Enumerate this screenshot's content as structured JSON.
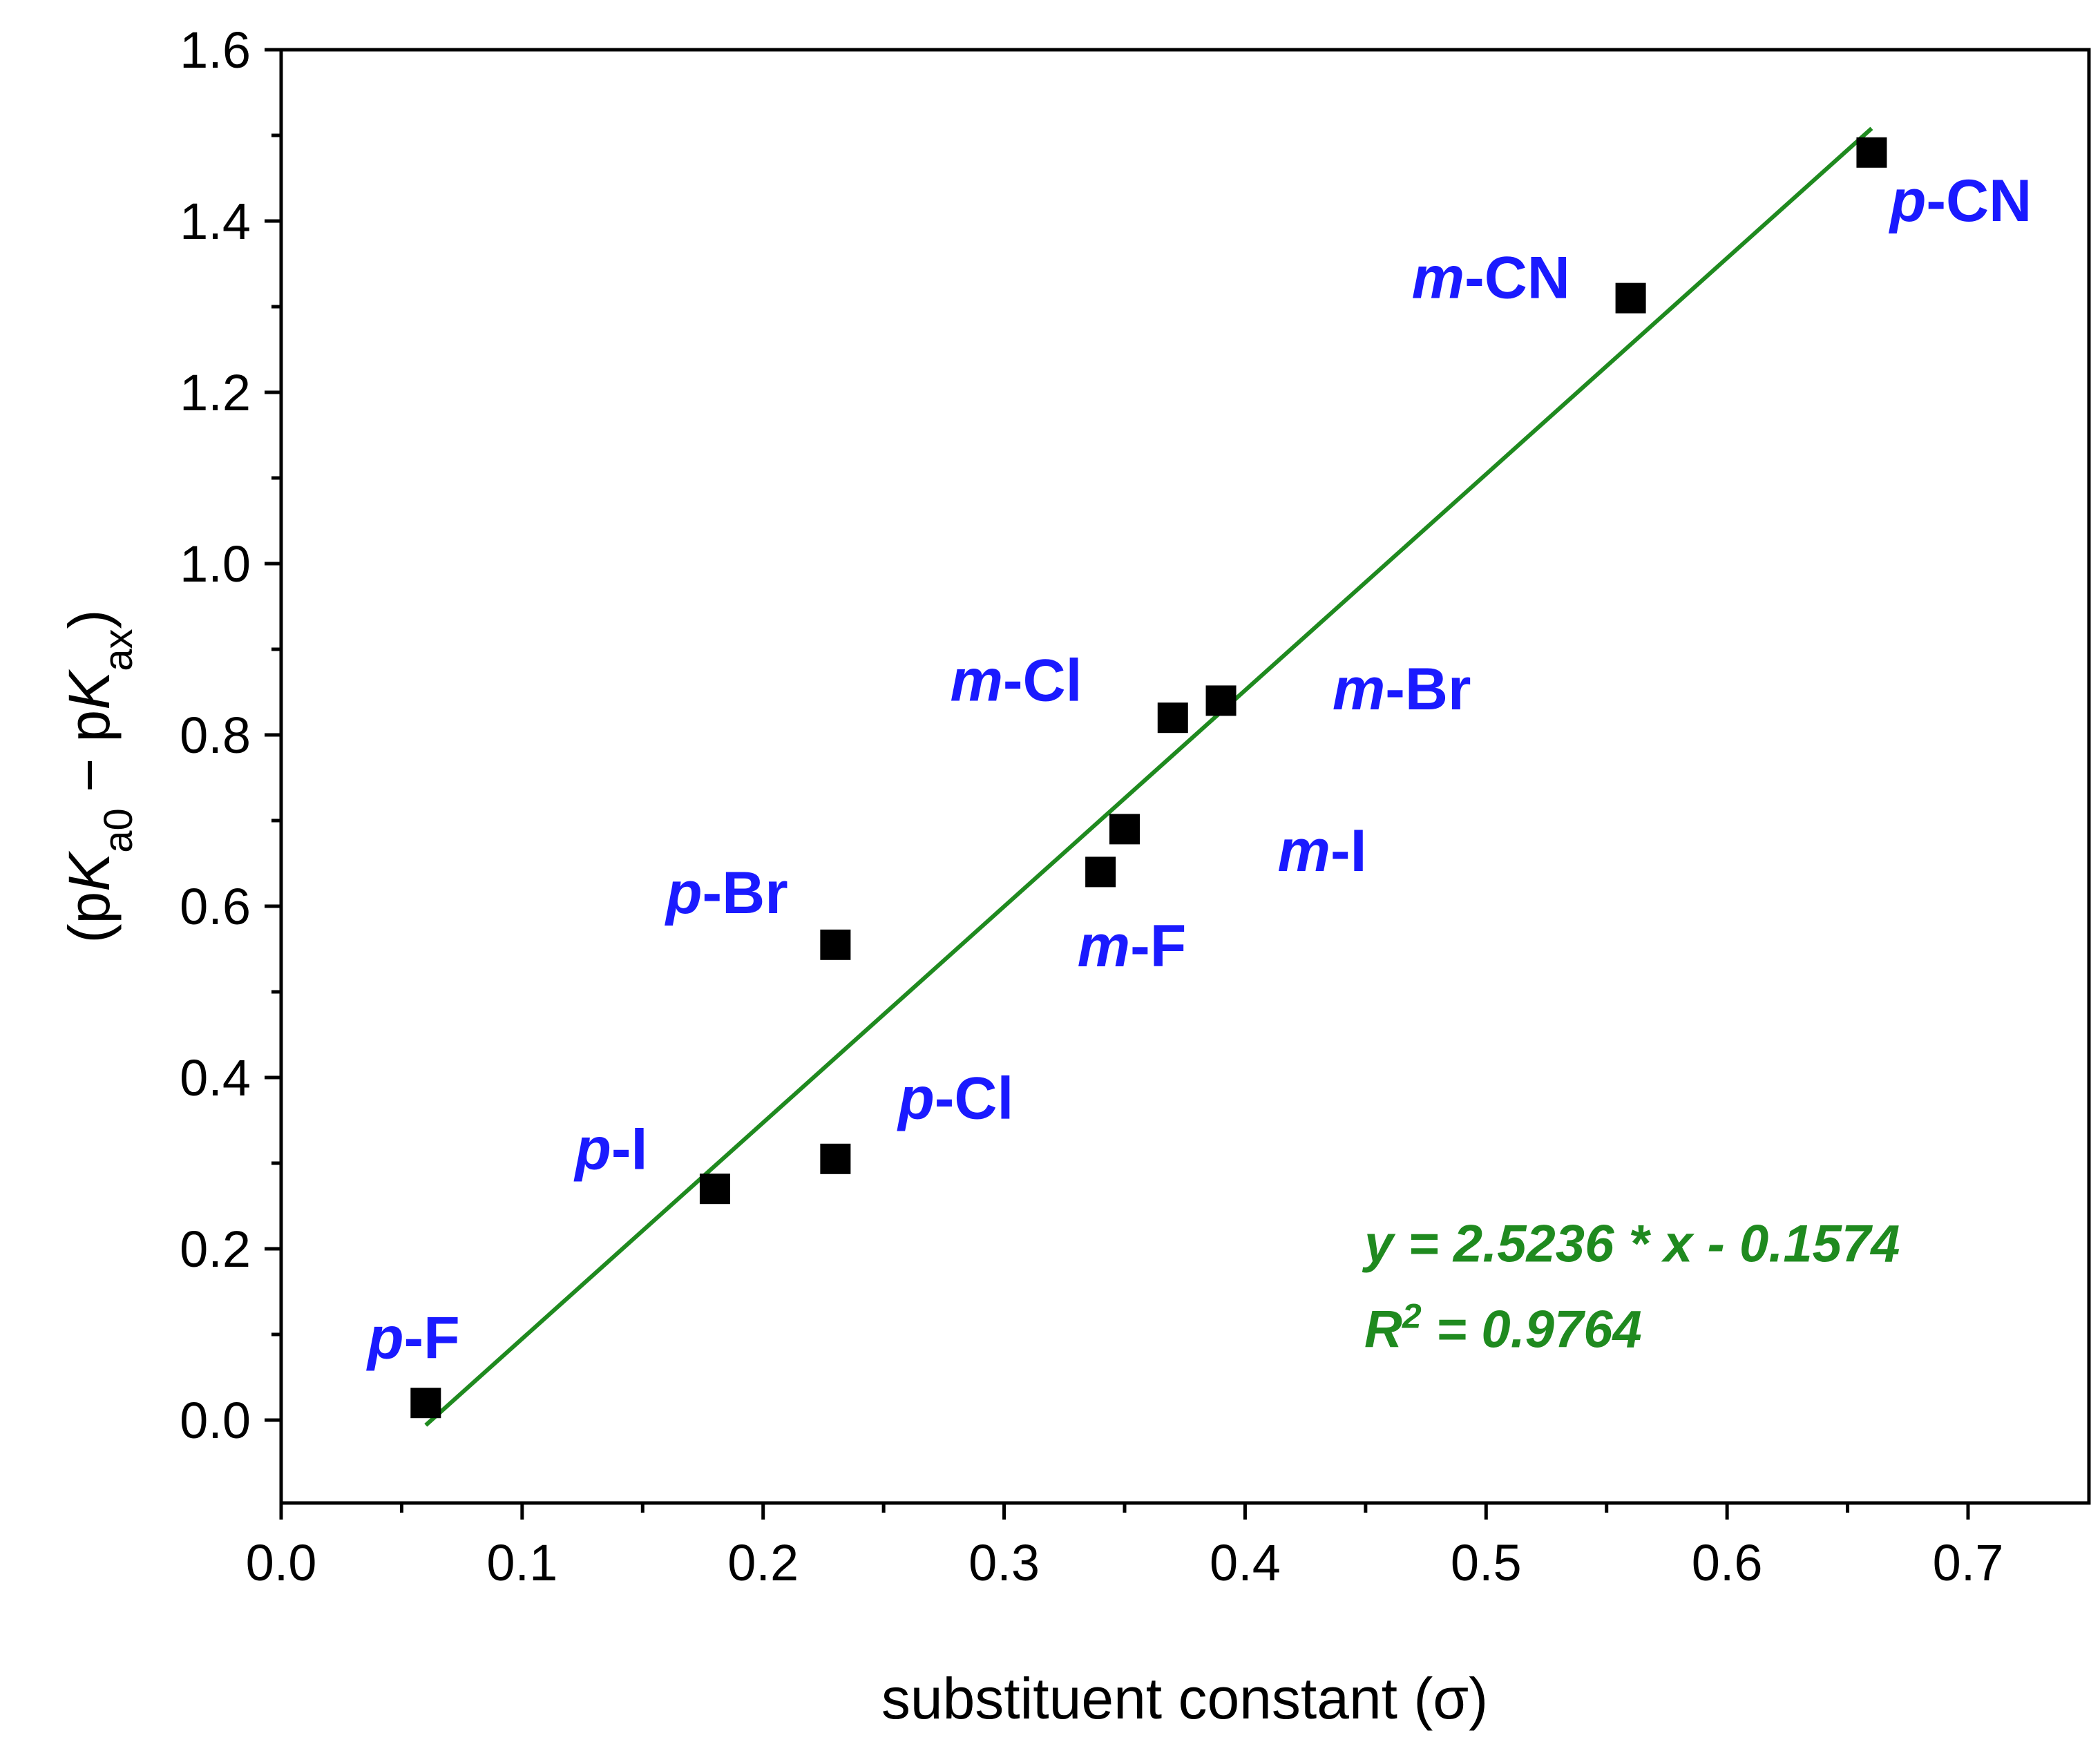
{
  "chart_data": {
    "type": "scatter",
    "xlabel": "substituent constant (σ)",
    "ylabel": {
      "open": "(p",
      "k1": "K",
      "sub1": "a0",
      "mid": " − p",
      "k2": "K",
      "sub2": "ax",
      "close": ")"
    },
    "xlim": [
      0.0,
      0.75
    ],
    "ylim": [
      -0.1,
      1.6
    ],
    "x_ticks": [
      {
        "value": 0.0,
        "label": "0.0"
      },
      {
        "value": 0.1,
        "label": "0.1"
      },
      {
        "value": 0.2,
        "label": "0.2"
      },
      {
        "value": 0.3,
        "label": "0.3"
      },
      {
        "value": 0.4,
        "label": "0.4"
      },
      {
        "value": 0.5,
        "label": "0.5"
      },
      {
        "value": 0.6,
        "label": "0.6"
      },
      {
        "value": 0.7,
        "label": "0.7"
      }
    ],
    "y_ticks": [
      {
        "value": 0.0,
        "label": "0.0"
      },
      {
        "value": 0.2,
        "label": "0.2"
      },
      {
        "value": 0.4,
        "label": "0.4"
      },
      {
        "value": 0.6,
        "label": "0.6"
      },
      {
        "value": 0.8,
        "label": "0.8"
      },
      {
        "value": 1.0,
        "label": "1.0"
      },
      {
        "value": 1.2,
        "label": "1.2"
      },
      {
        "value": 1.4,
        "label": "1.4"
      },
      {
        "value": 1.6,
        "label": "1.6"
      }
    ],
    "points": [
      {
        "name": "p-F",
        "prefix": "p",
        "suffix": "-F",
        "x": 0.06,
        "y": 0.02,
        "label_x": 0.055,
        "label_y": 0.072
      },
      {
        "name": "p-I",
        "prefix": "p",
        "suffix": "-I",
        "x": 0.18,
        "y": 0.27,
        "label_x": 0.137,
        "label_y": 0.293
      },
      {
        "name": "p-Cl",
        "prefix": "p",
        "suffix": "-Cl",
        "x": 0.23,
        "y": 0.305,
        "label_x": 0.28,
        "label_y": 0.352
      },
      {
        "name": "p-Br",
        "prefix": "p",
        "suffix": "-Br",
        "x": 0.23,
        "y": 0.555,
        "label_x": 0.185,
        "label_y": 0.592
      },
      {
        "name": "m-F",
        "prefix": "m",
        "suffix": "-F",
        "x": 0.34,
        "y": 0.64,
        "label_x": 0.353,
        "label_y": 0.53
      },
      {
        "name": "m-I",
        "prefix": "m",
        "suffix": "-I",
        "x": 0.35,
        "y": 0.69,
        "label_x": 0.432,
        "label_y": 0.641
      },
      {
        "name": "m-Cl",
        "prefix": "m",
        "suffix": "-Cl",
        "x": 0.37,
        "y": 0.82,
        "label_x": 0.305,
        "label_y": 0.84
      },
      {
        "name": "m-Br",
        "prefix": "m",
        "suffix": "-Br",
        "x": 0.39,
        "y": 0.84,
        "label_x": 0.465,
        "label_y": 0.83
      },
      {
        "name": "m-CN",
        "prefix": "m",
        "suffix": "-CN",
        "x": 0.56,
        "y": 1.31,
        "label_x": 0.502,
        "label_y": 1.31
      },
      {
        "name": "p-CN",
        "prefix": "p",
        "suffix": "-CN",
        "x": 0.66,
        "y": 1.48,
        "label_x": 0.697,
        "label_y": 1.4
      }
    ],
    "fit": {
      "slope": 2.5236,
      "intercept": -0.1574,
      "x_range": [
        0.06,
        0.66
      ],
      "equation": "y = 2.5236 * x - 0.1574",
      "r2_prefix": "R",
      "r2_sup": "2",
      "r2_value": " = 0.9764",
      "label_x": 0.455,
      "label_y": 0.185
    },
    "colors": {
      "marker": "#000000",
      "fit_line": "#1f8a1f",
      "point_label": "#1a1aff",
      "equation": "#1f8a1f"
    }
  }
}
